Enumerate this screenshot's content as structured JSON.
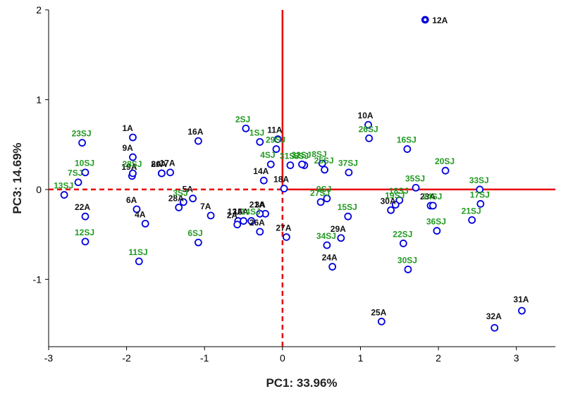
{
  "chart_data": {
    "type": "scatter",
    "xlabel": "PC1: 33.96%",
    "ylabel": "PC3: 14.69%",
    "xlim": [
      -3,
      3.5
    ],
    "ylim": [
      -1.75,
      2
    ],
    "xticks": [
      "-3",
      "-2",
      "-1",
      "0",
      "1",
      "2",
      "3"
    ],
    "yticks": [
      "-1",
      "0",
      "1",
      "2"
    ],
    "grid": false,
    "legend": "none",
    "reference_lines": {
      "x": 0,
      "y": 0,
      "color": "#e8000b"
    },
    "colors": {
      "A": "#111111",
      "SJ": "#229a22",
      "marker": "#0000dd"
    },
    "series": [
      {
        "group": "A",
        "points": [
          {
            "label": "1A",
            "x": -1.92,
            "y": 0.58
          },
          {
            "label": "3A",
            "x": -0.22,
            "y": -0.27
          },
          {
            "label": "4A",
            "x": -1.76,
            "y": -0.38
          },
          {
            "label": "5A",
            "x": -1.15,
            "y": -0.1
          },
          {
            "label": "6A",
            "x": -1.87,
            "y": -0.22
          },
          {
            "label": "7A",
            "x": -0.92,
            "y": -0.29
          },
          {
            "label": "8A",
            "x": -1.55,
            "y": 0.18
          },
          {
            "label": "9A",
            "x": -1.92,
            "y": 0.36
          },
          {
            "label": "10A",
            "x": 1.1,
            "y": 0.72
          },
          {
            "label": "11A",
            "x": -0.06,
            "y": 0.56
          },
          {
            "label": "12A",
            "x": 1.83,
            "y": 1.89
          },
          {
            "label": "13A",
            "x": -0.57,
            "y": -0.35
          },
          {
            "label": "14A",
            "x": -0.24,
            "y": 0.1
          },
          {
            "label": "16A",
            "x": -1.08,
            "y": 0.54
          },
          {
            "label": "17A",
            "x": -1.44,
            "y": 0.19
          },
          {
            "label": "18A",
            "x": 0.02,
            "y": 0.01
          },
          {
            "label": "19A",
            "x": -1.93,
            "y": 0.15
          },
          {
            "label": "20A",
            "x": -1.55,
            "y": 0.18
          },
          {
            "label": "21A",
            "x": -0.29,
            "y": -0.27
          },
          {
            "label": "22A",
            "x": -2.53,
            "y": -0.3
          },
          {
            "label": "23A",
            "x": 1.9,
            "y": -0.18
          },
          {
            "label": "24A",
            "x": 0.64,
            "y": -0.86
          },
          {
            "label": "25A",
            "x": 1.27,
            "y": -1.47
          },
          {
            "label": "26A",
            "x": -0.29,
            "y": -0.47
          },
          {
            "label": "27A",
            "x": 0.05,
            "y": -0.53
          },
          {
            "label": "28A",
            "x": -1.33,
            "y": -0.2
          },
          {
            "label": "29A",
            "x": 0.75,
            "y": -0.54
          },
          {
            "label": "30A",
            "x": 1.39,
            "y": -0.23
          },
          {
            "label": "31A",
            "x": 3.07,
            "y": -1.35
          },
          {
            "label": "32A",
            "x": 2.72,
            "y": -1.54
          },
          {
            "label": "2A",
            "x": -0.58,
            "y": -0.39
          },
          {
            "label": "15A",
            "x": -0.5,
            "y": -0.35
          }
        ]
      },
      {
        "group": "SJ",
        "points": [
          {
            "label": "1SJ",
            "x": -0.29,
            "y": 0.53
          },
          {
            "label": "2SJ",
            "x": -0.47,
            "y": 0.68
          },
          {
            "label": "3SJ",
            "x": -1.27,
            "y": -0.14
          },
          {
            "label": "4SJ",
            "x": -0.15,
            "y": 0.28
          },
          {
            "label": "5SJ",
            "x": 0.28,
            "y": 0.27
          },
          {
            "label": "6SJ",
            "x": -1.08,
            "y": -0.59
          },
          {
            "label": "7SJ",
            "x": -2.62,
            "y": 0.08
          },
          {
            "label": "8SJ",
            "x": 0.51,
            "y": 0.29
          },
          {
            "label": "9SJ",
            "x": 0.57,
            "y": -0.1
          },
          {
            "label": "10SJ",
            "x": -2.53,
            "y": 0.19
          },
          {
            "label": "11SJ",
            "x": -1.84,
            "y": -0.8
          },
          {
            "label": "12SJ",
            "x": -2.53,
            "y": -0.58
          },
          {
            "label": "13SJ",
            "x": -2.8,
            "y": -0.06
          },
          {
            "label": "14SJ",
            "x": -0.4,
            "y": -0.35
          },
          {
            "label": "15SJ",
            "x": 0.84,
            "y": -0.3
          },
          {
            "label": "16SJ",
            "x": 1.6,
            "y": 0.45
          },
          {
            "label": "17SJ",
            "x": 2.54,
            "y": -0.16
          },
          {
            "label": "18SJ",
            "x": 1.5,
            "y": -0.12
          },
          {
            "label": "19SJ",
            "x": 1.45,
            "y": -0.17
          },
          {
            "label": "20SJ",
            "x": 2.09,
            "y": 0.21
          },
          {
            "label": "21SJ",
            "x": 2.43,
            "y": -0.34
          },
          {
            "label": "22SJ",
            "x": 1.55,
            "y": -0.6
          },
          {
            "label": "23SJ",
            "x": -2.57,
            "y": 0.52
          },
          {
            "label": "24SJ",
            "x": 1.93,
            "y": -0.18
          },
          {
            "label": "25SJ",
            "x": 0.54,
            "y": 0.22
          },
          {
            "label": "26SJ",
            "x": 1.11,
            "y": 0.57
          },
          {
            "label": "27SJ",
            "x": 0.49,
            "y": -0.14
          },
          {
            "label": "28SJ",
            "x": -1.92,
            "y": 0.18
          },
          {
            "label": "29SJ",
            "x": -0.08,
            "y": 0.45
          },
          {
            "label": "30SJ",
            "x": 1.61,
            "y": -0.89
          },
          {
            "label": "31SJ",
            "x": 0.1,
            "y": 0.27
          },
          {
            "label": "32SJ",
            "x": 0.25,
            "y": 0.28
          },
          {
            "label": "33SJ",
            "x": 2.53,
            "y": 0.0
          },
          {
            "label": "34SJ",
            "x": 0.57,
            "y": -0.62
          },
          {
            "label": "35SJ",
            "x": 1.71,
            "y": 0.02
          },
          {
            "label": "36SJ",
            "x": 1.98,
            "y": -0.46
          },
          {
            "label": "37SJ",
            "x": 0.85,
            "y": 0.19
          }
        ]
      }
    ]
  }
}
